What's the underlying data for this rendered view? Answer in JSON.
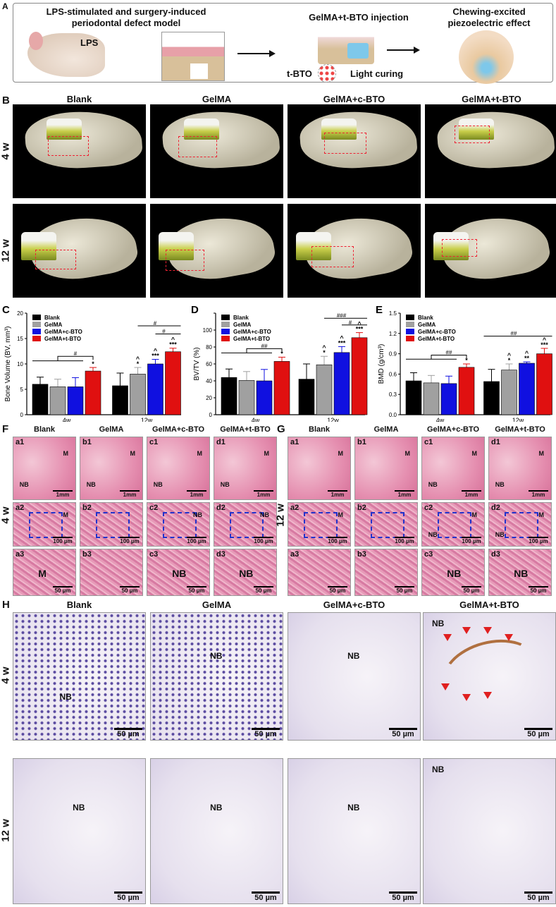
{
  "panelA": {
    "label": "A",
    "model_title": "LPS-stimulated and surgery-induced periodontal defect model",
    "lps": "LPS",
    "injection_title": "GelMA+t-BTO injection",
    "tbto": "t-BTO",
    "light": "Light curing",
    "effect_title": "Chewing-excited piezoelectric effect"
  },
  "panelB": {
    "label": "B",
    "columns": [
      "Blank",
      "GelMA",
      "GelMA+c-BTO",
      "GelMA+t-BTO"
    ],
    "rows": [
      "4 w",
      "12 w"
    ]
  },
  "colors": {
    "Blank": "#000000",
    "GelMA": "#a0a0a0",
    "GelMA+c-BTO": "#1010e0",
    "GelMA+t-BTO": "#e01010"
  },
  "chart_data": [
    {
      "panel": "C",
      "type": "bar",
      "ylabel": "Bone Volume (BV, mm³)",
      "ylim": [
        0,
        20
      ],
      "yticks": [
        "0",
        "5",
        "10",
        "15",
        "20"
      ],
      "categories": [
        "4w",
        "12w"
      ],
      "series": [
        {
          "name": "Blank",
          "values": [
            6.0,
            5.7
          ],
          "errors": [
            1.4,
            2.5
          ],
          "marks": [
            "",
            ""
          ]
        },
        {
          "name": "GelMA",
          "values": [
            5.5,
            8.0
          ],
          "errors": [
            1.5,
            1.3
          ],
          "marks": [
            "",
            "^ *"
          ]
        },
        {
          "name": "GelMA+c-BTO",
          "values": [
            5.5,
            10.0
          ],
          "errors": [
            1.8,
            0.9
          ],
          "marks": [
            "",
            "^ ***"
          ]
        },
        {
          "name": "GelMA+t-BTO",
          "values": [
            8.6,
            12.4
          ],
          "errors": [
            0.7,
            0.7
          ],
          "marks": [
            "*",
            "^ ***"
          ]
        }
      ],
      "brackets": [
        {
          "type": "group",
          "cat": 0,
          "y": 10.6,
          "top": 11.5,
          "label": "#"
        },
        {
          "type": "line",
          "cat": 1,
          "from": 1,
          "to": 3,
          "y": 17.5,
          "label": "#"
        },
        {
          "type": "line",
          "cat": 1,
          "from": 2,
          "to": 3,
          "y": 15.9,
          "label": "#"
        }
      ]
    },
    {
      "panel": "D",
      "type": "bar",
      "ylabel": "BV/TV (%)",
      "ylim": [
        0,
        120
      ],
      "yticks": [
        "0",
        "20",
        "40",
        "60",
        "80",
        "100",
        ""
      ],
      "categories": [
        "4w",
        "12w"
      ],
      "series": [
        {
          "name": "Blank",
          "values": [
            44,
            42
          ],
          "errors": [
            10,
            18
          ],
          "marks": [
            "",
            ""
          ]
        },
        {
          "name": "GelMA",
          "values": [
            40.5,
            59
          ],
          "errors": [
            10.5,
            10
          ],
          "marks": [
            "",
            "^ *"
          ]
        },
        {
          "name": "GelMA+c-BTO",
          "values": [
            40,
            73.5
          ],
          "errors": [
            13.5,
            7
          ],
          "marks": [
            "",
            "^ ***"
          ]
        },
        {
          "name": "GelMA+t-BTO",
          "values": [
            63,
            91
          ],
          "errors": [
            5,
            6
          ],
          "marks": [
            "*",
            "^ ***"
          ]
        }
      ],
      "brackets": [
        {
          "type": "group",
          "cat": 0,
          "y": 73,
          "top": 78,
          "label": "##"
        },
        {
          "type": "line",
          "cat": 1,
          "from": 1,
          "to": 3,
          "y": 114,
          "label": "###"
        },
        {
          "type": "line",
          "cat": 1,
          "from": 2,
          "to": 3,
          "y": 106,
          "label": "#"
        }
      ]
    },
    {
      "panel": "E",
      "type": "bar",
      "ylabel": "BMD (g/cm³)",
      "ylim": [
        0,
        1.5
      ],
      "yticks": [
        "0.0",
        "0.3",
        "0.6",
        "0.9",
        "1.2",
        "1.5"
      ],
      "categories": [
        "4w",
        "12w"
      ],
      "series": [
        {
          "name": "Blank",
          "values": [
            0.5,
            0.49
          ],
          "errors": [
            0.12,
            0.18
          ],
          "marks": [
            "",
            ""
          ]
        },
        {
          "name": "GelMA",
          "values": [
            0.47,
            0.66
          ],
          "errors": [
            0.11,
            0.09
          ],
          "marks": [
            "",
            "^ *"
          ]
        },
        {
          "name": "GelMA+c-BTO",
          "values": [
            0.46,
            0.76
          ],
          "errors": [
            0.11,
            0.02
          ],
          "marks": [
            "",
            "^ **"
          ]
        },
        {
          "name": "GelMA+t-BTO",
          "values": [
            0.7,
            0.9
          ],
          "errors": [
            0.05,
            0.08
          ],
          "marks": [
            "*",
            "^ ***"
          ]
        }
      ],
      "brackets": [
        {
          "type": "group",
          "cat": 0,
          "y": 0.82,
          "top": 0.88,
          "label": "##"
        },
        {
          "type": "line",
          "cat": 1,
          "from": 0,
          "to": 3,
          "y": 1.16,
          "label": "##"
        }
      ]
    }
  ],
  "panelF": {
    "label": "F",
    "row_label": "4 w",
    "columns": [
      "Blank",
      "GelMA",
      "GelMA+c-BTO",
      "GelMA+t-BTO"
    ],
    "rows": [
      {
        "scale": "1mm",
        "tiles": [
          {
            "id": "a1",
            "marks": [
              "M",
              "NB"
            ]
          },
          {
            "id": "b1",
            "marks": [
              "M",
              "NB"
            ]
          },
          {
            "id": "c1",
            "marks": [
              "M",
              "NB"
            ]
          },
          {
            "id": "d1",
            "marks": [
              "M",
              "NB"
            ]
          }
        ]
      },
      {
        "scale": "100 µm",
        "tiles": [
          {
            "id": "a2",
            "marks": [
              "M"
            ]
          },
          {
            "id": "b2",
            "marks": []
          },
          {
            "id": "c2",
            "marks": [
              "NB"
            ]
          },
          {
            "id": "d2",
            "marks": [
              "NB"
            ]
          }
        ]
      },
      {
        "scale": "50 µm",
        "tiles": [
          {
            "id": "a3",
            "marks": [
              "M"
            ]
          },
          {
            "id": "b3",
            "marks": []
          },
          {
            "id": "c3",
            "marks": [
              "NB"
            ]
          },
          {
            "id": "d3",
            "marks": [
              "NB"
            ]
          }
        ]
      }
    ]
  },
  "panelG": {
    "label": "G",
    "row_label": "12 w",
    "columns": [
      "Blank",
      "GelMA",
      "GelMA+c-BTO",
      "GelMA+t-BTO"
    ],
    "rows": [
      {
        "scale": "1mm",
        "tiles": [
          {
            "id": "a1",
            "marks": [
              "M"
            ]
          },
          {
            "id": "b1",
            "marks": [
              "M"
            ]
          },
          {
            "id": "c1",
            "marks": [
              "M",
              "NB"
            ]
          },
          {
            "id": "d1",
            "marks": [
              "M",
              "NB"
            ]
          }
        ]
      },
      {
        "scale": "100 µm",
        "tiles": [
          {
            "id": "a2",
            "marks": [
              "M"
            ]
          },
          {
            "id": "b2",
            "marks": []
          },
          {
            "id": "c2",
            "marks": [
              "M",
              "NB"
            ]
          },
          {
            "id": "d2",
            "marks": [
              "M",
              "NB"
            ]
          }
        ]
      },
      {
        "scale": "50 µm",
        "tiles": [
          {
            "id": "a3",
            "marks": []
          },
          {
            "id": "b3",
            "marks": []
          },
          {
            "id": "c3",
            "marks": [
              "NB"
            ]
          },
          {
            "id": "d3",
            "marks": [
              "NB"
            ]
          }
        ]
      }
    ]
  },
  "panelH": {
    "label": "H",
    "columns": [
      "Blank",
      "GelMA",
      "GelMA+c-BTO",
      "GelMA+t-BTO"
    ],
    "row_labels": [
      "4 w",
      "12 w"
    ],
    "scale": "50 µm",
    "rows": [
      {
        "tiles": [
          {
            "marks": [
              "",
              "NB"
            ]
          },
          {
            "marks": [
              "NB",
              ""
            ]
          },
          {
            "marks": [
              "NB",
              ""
            ]
          },
          {
            "marks": [
              "NB",
              ""
            ]
          }
        ]
      },
      {
        "tiles": [
          {
            "marks": [
              "NB",
              ""
            ]
          },
          {
            "marks": [
              "NB",
              ""
            ]
          },
          {
            "marks": [
              "NB",
              ""
            ]
          },
          {
            "marks": [
              "NB",
              ""
            ]
          }
        ]
      }
    ]
  }
}
